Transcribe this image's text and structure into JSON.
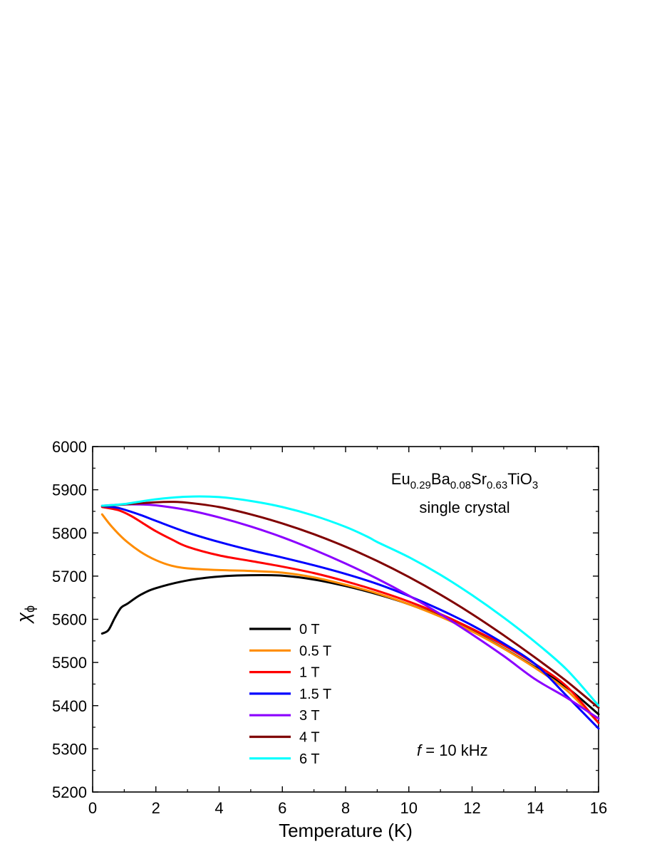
{
  "chart_data": {
    "type": "line",
    "xlabel": "Temperature (K)",
    "ylabel": "χ",
    "ylabel_sub": "ϕ",
    "xlim": [
      0,
      16
    ],
    "ylim": [
      5200,
      6000
    ],
    "xticks": [
      "0",
      "2",
      "4",
      "6",
      "8",
      "10",
      "12",
      "14",
      "16"
    ],
    "yticks": [
      "5200",
      "5300",
      "5400",
      "5500",
      "5600",
      "5700",
      "5800",
      "5900",
      "6000"
    ],
    "grid": false,
    "legend_position": "lower-left",
    "annotation_compound": {
      "parts": [
        {
          "text": "Eu",
          "sub": false
        },
        {
          "text": "0.29",
          "sub": true
        },
        {
          "text": "Ba",
          "sub": false
        },
        {
          "text": "0.08",
          "sub": true
        },
        {
          "text": "Sr",
          "sub": false
        },
        {
          "text": "0.63",
          "sub": true
        },
        {
          "text": "TiO",
          "sub": false
        },
        {
          "text": "3",
          "sub": true
        }
      ]
    },
    "annotation_sample": "single crystal",
    "annotation_freq_symbol": "f",
    "annotation_freq_value": " = 10 kHz",
    "series": [
      {
        "name": "0 T",
        "color": "#000000",
        "x": [
          0.3,
          0.5,
          0.7,
          0.9,
          1.1,
          1.5,
          2,
          3,
          4,
          5,
          6,
          7,
          8,
          9,
          10,
          11,
          12,
          13,
          14,
          15,
          16
        ],
        "y": [
          5567,
          5575,
          5603,
          5627,
          5636,
          5656,
          5672,
          5690,
          5699,
          5702,
          5701,
          5692,
          5677,
          5658,
          5635,
          5607,
          5573,
          5533,
          5489,
          5442,
          5380
        ]
      },
      {
        "name": "0.5 T",
        "color": "#ff8c00",
        "x": [
          0.3,
          0.6,
          1,
          1.5,
          2,
          2.5,
          3,
          4,
          5,
          6,
          7,
          8,
          9,
          10,
          11,
          12,
          13,
          14,
          15,
          16
        ],
        "y": [
          5843,
          5815,
          5785,
          5757,
          5737,
          5724,
          5718,
          5714,
          5712,
          5708,
          5697,
          5680,
          5660,
          5635,
          5606,
          5572,
          5532,
          5487,
          5435,
          5360
        ]
      },
      {
        "name": "1 T",
        "color": "#ff0000",
        "x": [
          0.3,
          0.8,
          1.2,
          1.6,
          2,
          2.5,
          3,
          4,
          5,
          6,
          7,
          8,
          9,
          10,
          11,
          12,
          13,
          14,
          15,
          16
        ],
        "y": [
          5860,
          5853,
          5840,
          5822,
          5804,
          5785,
          5768,
          5748,
          5735,
          5722,
          5707,
          5688,
          5666,
          5641,
          5612,
          5578,
          5540,
          5496,
          5444,
          5360
        ]
      },
      {
        "name": "1.5 T",
        "color": "#0000ff",
        "x": [
          0.3,
          0.8,
          1.5,
          2,
          3,
          4,
          5,
          6,
          7,
          8,
          9,
          10,
          11,
          12,
          13,
          14,
          15,
          16
        ],
        "y": [
          5862,
          5858,
          5842,
          5828,
          5801,
          5779,
          5760,
          5743,
          5725,
          5705,
          5682,
          5654,
          5622,
          5586,
          5544,
          5496,
          5422,
          5347
        ]
      },
      {
        "name": "3 T",
        "color": "#8b00ff",
        "x": [
          0.3,
          1,
          1.5,
          2,
          3,
          4,
          5,
          6,
          7,
          8,
          9,
          10,
          11,
          12,
          13,
          14,
          15,
          16
        ],
        "y": [
          5863,
          5866,
          5866,
          5864,
          5853,
          5836,
          5815,
          5790,
          5761,
          5729,
          5694,
          5655,
          5612,
          5565,
          5515,
          5461,
          5418,
          5370
        ]
      },
      {
        "name": "4 T",
        "color": "#800000",
        "x": [
          0.3,
          1,
          2,
          2.5,
          3,
          4,
          5,
          6,
          7,
          8,
          9,
          10,
          11,
          12,
          13,
          14,
          15,
          16
        ],
        "y": [
          5862,
          5866,
          5871,
          5872,
          5870,
          5860,
          5843,
          5822,
          5797,
          5768,
          5735,
          5698,
          5657,
          5612,
          5563,
          5511,
          5456,
          5395
        ]
      },
      {
        "name": "6 T",
        "color": "#00ffff",
        "x": [
          0.3,
          1,
          2,
          3,
          4,
          5,
          6,
          7,
          8,
          8.7,
          9,
          10,
          11,
          12,
          13,
          14,
          15,
          16
        ],
        "y": [
          5863,
          5867,
          5878,
          5884,
          5883,
          5874,
          5860,
          5840,
          5814,
          5791,
          5779,
          5744,
          5703,
          5656,
          5604,
          5547,
          5483,
          5400
        ]
      }
    ]
  }
}
